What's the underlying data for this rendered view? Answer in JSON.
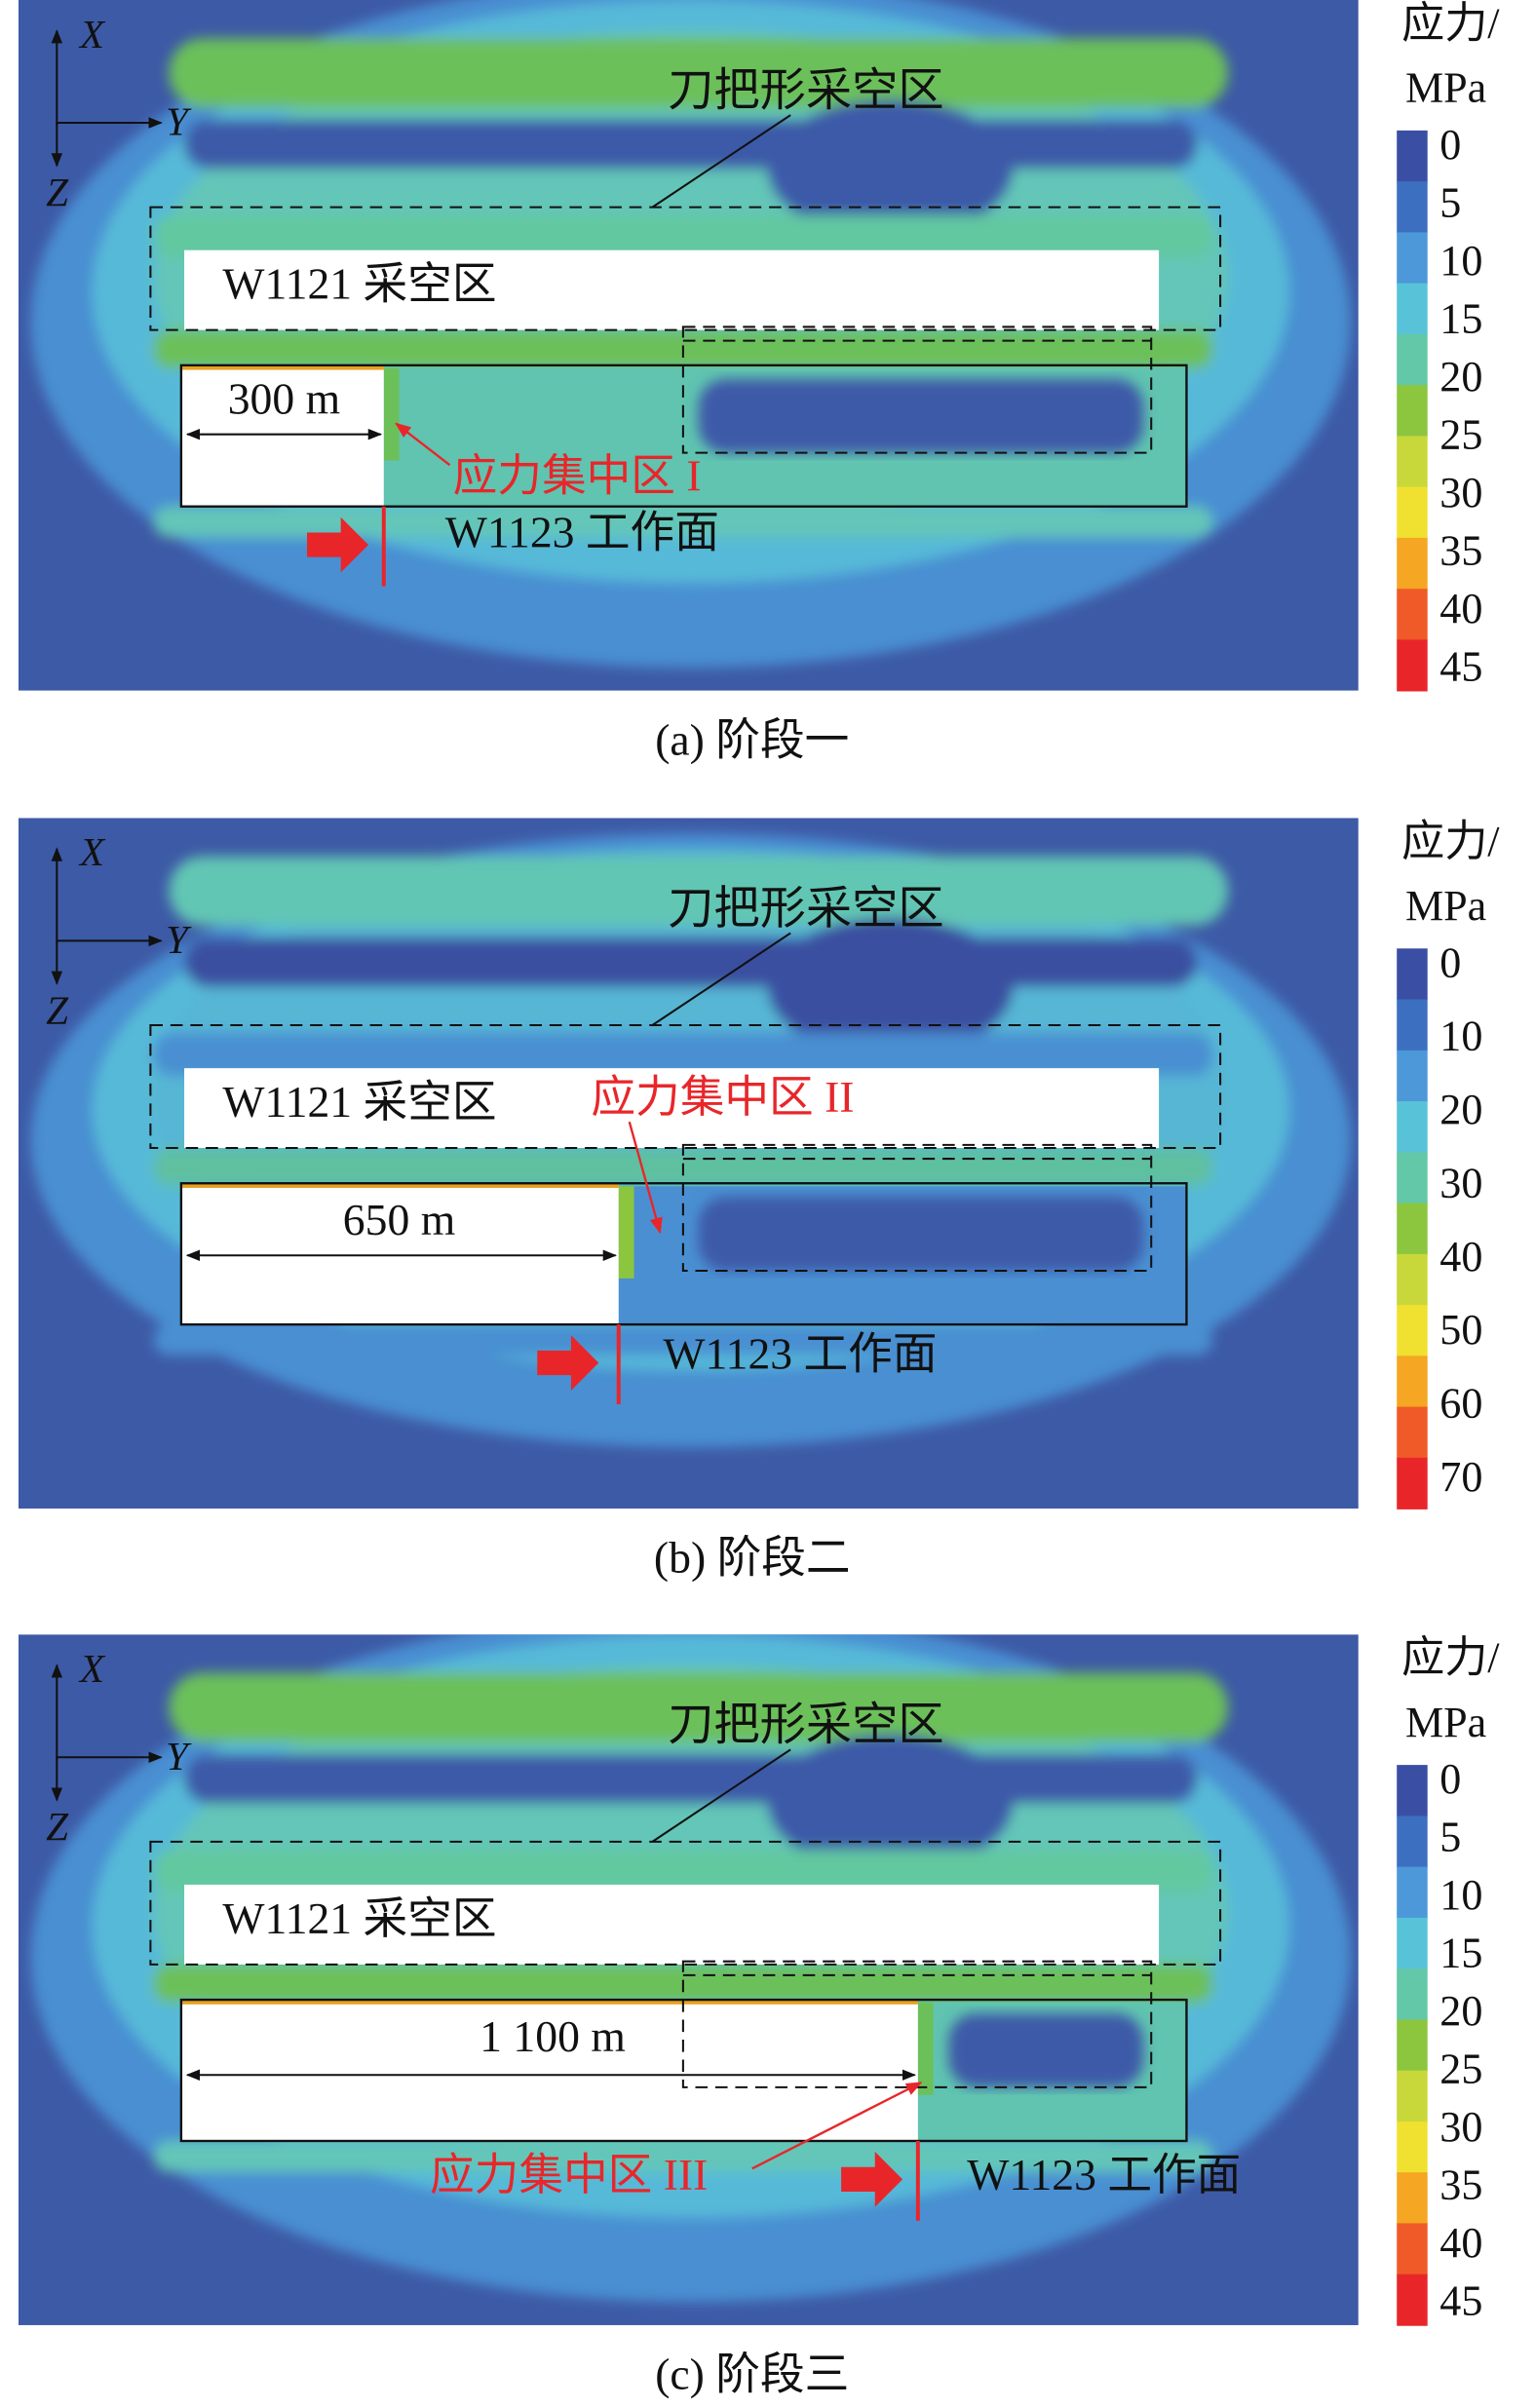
{
  "panels": [
    {
      "caption": "(a) 阶段一",
      "axes": {
        "x": "X",
        "y": "Y",
        "z": "Z"
      },
      "goaf_label": "刀把形采空区",
      "w1121_label": "W1121 采空区",
      "distance_label": "300 m",
      "zone_label": "应力集中区 I",
      "face_label": "W1123 工作面",
      "colorbar": {
        "title": "应力/",
        "unit": "MPa",
        "ticks": [
          0,
          5,
          10,
          15,
          20,
          25,
          30,
          35,
          40,
          45
        ]
      }
    },
    {
      "caption": "(b) 阶段二",
      "axes": {
        "x": "X",
        "y": "Y",
        "z": "Z"
      },
      "goaf_label": "刀把形采空区",
      "w1121_label": "W1121 采空区",
      "distance_label": "650 m",
      "zone_label": "应力集中区 II",
      "face_label": "W1123 工作面",
      "colorbar": {
        "title": "应力/",
        "unit": "MPa",
        "ticks": [
          0,
          10,
          20,
          30,
          40,
          50,
          60,
          70
        ]
      }
    },
    {
      "caption": "(c) 阶段三",
      "axes": {
        "x": "X",
        "y": "Y",
        "z": "Z"
      },
      "goaf_label": "刀把形采空区",
      "w1121_label": "W1121 采空区",
      "distance_label": "1 100 m",
      "zone_label": "应力集中区 III",
      "face_label": "W1123 工作面",
      "colorbar": {
        "title": "应力/",
        "unit": "MPa",
        "ticks": [
          0,
          5,
          10,
          15,
          20,
          25,
          30,
          35,
          40,
          45
        ]
      }
    }
  ]
}
